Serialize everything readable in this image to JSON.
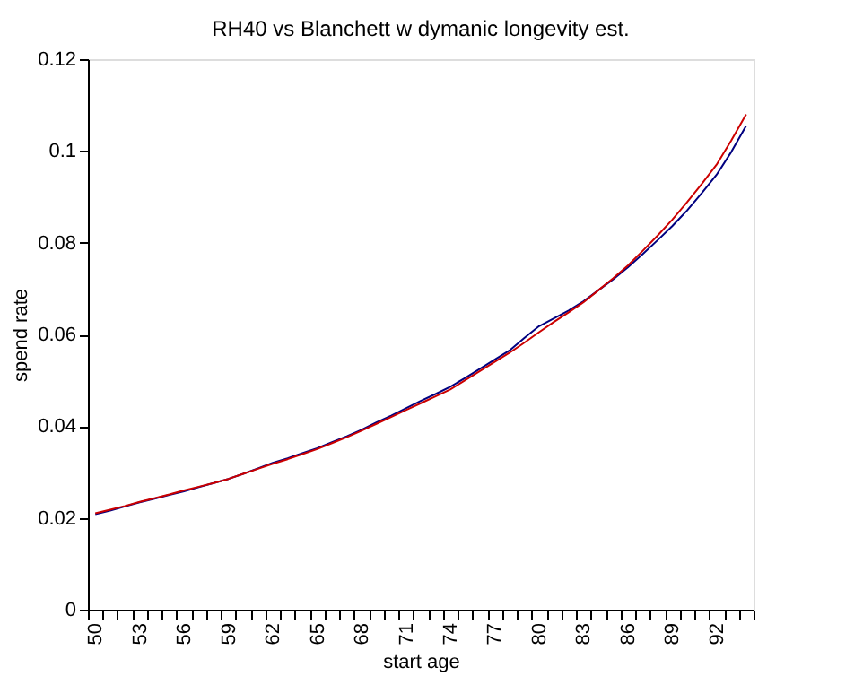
{
  "chart_data": {
    "type": "line",
    "title": "RH40 vs Blanchett w dymanic longevity est.",
    "xlabel": "start age",
    "ylabel": "spend rate",
    "categories": [
      "50",
      null,
      null,
      "53",
      null,
      null,
      "56",
      null,
      null,
      "59",
      null,
      null,
      "62",
      null,
      null,
      "65",
      null,
      null,
      "68",
      null,
      null,
      "71",
      null,
      null,
      "74",
      null,
      null,
      "77",
      null,
      null,
      "80",
      null,
      null,
      "83",
      null,
      null,
      "86",
      null,
      null,
      "89",
      null,
      null,
      "92",
      null,
      null
    ],
    "series": [
      {
        "color": "#000080",
        "values": [
          0.0208,
          0.0216,
          0.0225,
          0.0234,
          0.0242,
          0.025,
          0.0258,
          0.0267,
          0.0276,
          0.0285,
          0.0296,
          0.0308,
          0.032,
          0.033,
          0.0341,
          0.0352,
          0.0365,
          0.0378,
          0.0392,
          0.0408,
          0.0423,
          0.0439,
          0.0455,
          0.047,
          0.0486,
          0.0505,
          0.0525,
          0.0545,
          0.0565,
          0.0592,
          0.0618,
          0.0635,
          0.0652,
          0.0672,
          0.0696,
          0.072,
          0.0746,
          0.0775,
          0.0805,
          0.0836,
          0.087,
          0.0908,
          0.0948,
          0.0998,
          0.1055
        ]
      },
      {
        "color": "#cc0000",
        "values": [
          0.021,
          0.0218,
          0.0226,
          0.0235,
          0.0243,
          0.0251,
          0.026,
          0.0268,
          0.0276,
          0.0285,
          0.0296,
          0.0307,
          0.0318,
          0.0328,
          0.0339,
          0.035,
          0.0363,
          0.0376,
          0.039,
          0.0405,
          0.042,
          0.0435,
          0.045,
          0.0465,
          0.048,
          0.05,
          0.052,
          0.054,
          0.056,
          0.0582,
          0.0605,
          0.0627,
          0.0648,
          0.067,
          0.0696,
          0.0722,
          0.075,
          0.0782,
          0.0815,
          0.085,
          0.0888,
          0.0928,
          0.097,
          0.1023,
          0.108
        ]
      }
    ],
    "ylim": [
      0,
      0.12
    ],
    "yticks": [
      0,
      0.02,
      0.04,
      0.06,
      0.08,
      0.1,
      0.12
    ],
    "grid": false,
    "legend": false,
    "marker": "none",
    "line_style": "solid"
  }
}
